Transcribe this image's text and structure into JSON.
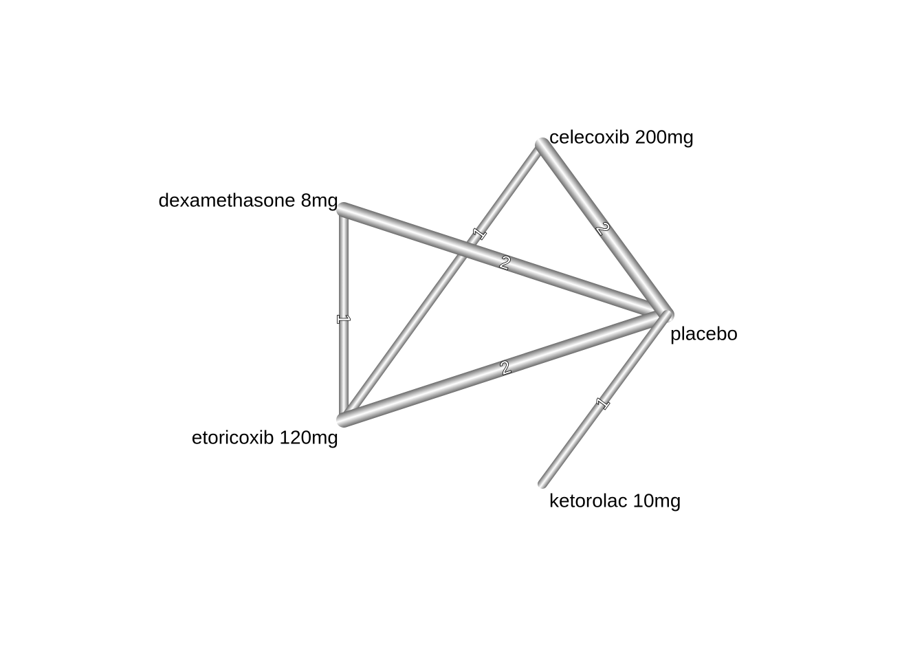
{
  "diagram": {
    "nodes": [
      {
        "id": "celecoxib",
        "label": "celecoxib 200mg"
      },
      {
        "id": "dexamethasone",
        "label": "dexamethasone 8mg"
      },
      {
        "id": "placebo",
        "label": "placebo"
      },
      {
        "id": "etoricoxib",
        "label": "etoricoxib 120mg"
      },
      {
        "id": "ketorolac",
        "label": "ketorolac 10mg"
      }
    ],
    "edges": [
      {
        "from": "dexamethasone",
        "to": "etoricoxib",
        "weight": "1"
      },
      {
        "from": "etoricoxib",
        "to": "celecoxib",
        "weight": "1"
      },
      {
        "from": "dexamethasone",
        "to": "placebo",
        "weight": "2"
      },
      {
        "from": "etoricoxib",
        "to": "placebo",
        "weight": "2"
      },
      {
        "from": "celecoxib",
        "to": "placebo",
        "weight": "2"
      },
      {
        "from": "ketorolac",
        "to": "placebo",
        "weight": "1"
      }
    ]
  },
  "colors": {
    "edge_dark": "#6b6b6b",
    "edge_light": "#ffffff",
    "label_text": "#000000"
  }
}
